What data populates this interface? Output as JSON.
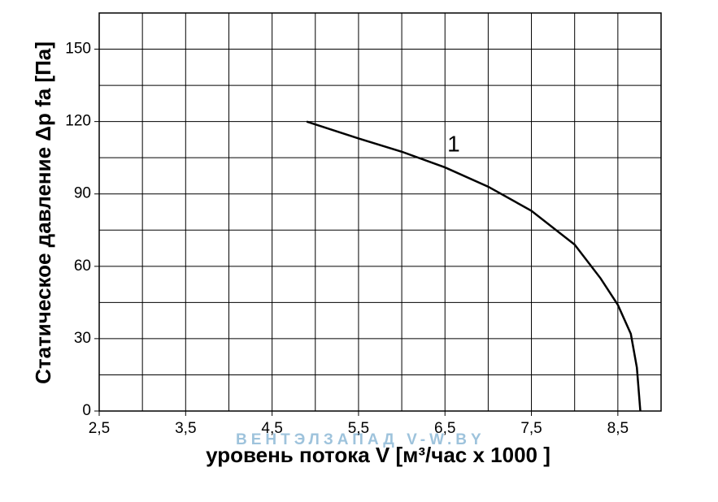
{
  "chart_data": {
    "type": "line",
    "ylabel": "Статическое давление  Δp fa [Па]",
    "xlabel": "уровень потока  V [м³/час x 1000 ]",
    "watermark": "ВЕНТЭЛЗАПАД   V-W.BY",
    "annotation": {
      "text": "1",
      "x": 6.6,
      "y": 110
    },
    "xlim": [
      2.5,
      9.0
    ],
    "ylim": [
      0,
      165
    ],
    "xticks": [
      {
        "value": 2.5,
        "label": "2,5"
      },
      {
        "value": 3.5,
        "label": "3,5"
      },
      {
        "value": 4.5,
        "label": "4,5"
      },
      {
        "value": 5.5,
        "label": "5,5"
      },
      {
        "value": 6.5,
        "label": "6,5"
      },
      {
        "value": 7.5,
        "label": "7,5"
      },
      {
        "value": 8.5,
        "label": "8,5"
      }
    ],
    "xminor": [
      3,
      4,
      5,
      6,
      7,
      8,
      9
    ],
    "yticks": [
      0,
      30,
      60,
      90,
      120,
      150
    ],
    "yminor": [
      15,
      45,
      75,
      105,
      135,
      165
    ],
    "grid": true,
    "series": [
      {
        "name": "1",
        "color": "#000000",
        "x": [
          4.9,
          5.5,
          6.0,
          6.5,
          7.0,
          7.5,
          8.0,
          8.3,
          8.5,
          8.65,
          8.72,
          8.76
        ],
        "values": [
          120,
          113,
          107.5,
          101,
          93,
          83,
          69,
          55,
          44,
          32,
          18,
          0
        ]
      }
    ]
  }
}
